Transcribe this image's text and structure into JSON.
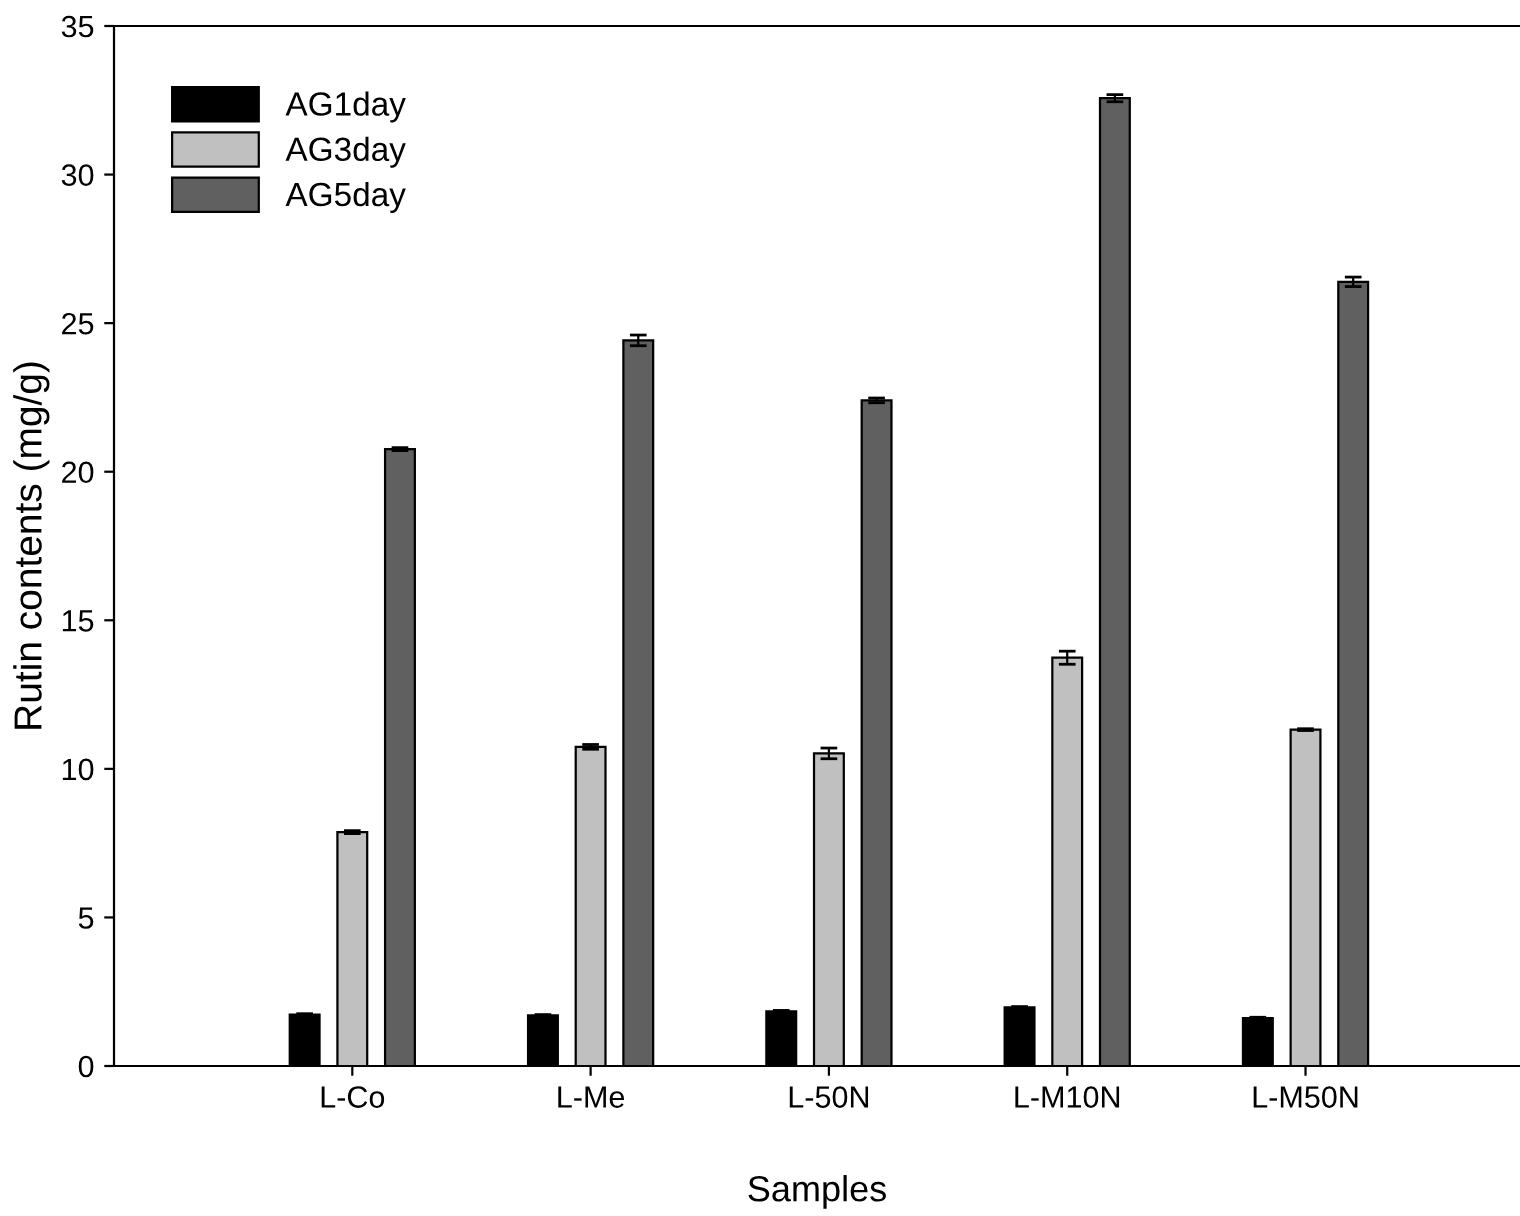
{
  "chart_data": {
    "type": "bar",
    "xlabel": "Samples",
    "ylabel": "Rutin contents (mg/g)",
    "categories": [
      "L-Co",
      "L-Me",
      "L-50N",
      "L-M10N",
      "L-M50N"
    ],
    "series": [
      {
        "name": "AG1day",
        "color": "#000000",
        "values": [
          1.73,
          1.7,
          1.84,
          1.97,
          1.61
        ],
        "errors": [
          0.03,
          0.03,
          0.03,
          0.03,
          0.03
        ]
      },
      {
        "name": "AG3day",
        "color": "#c0c0c0",
        "values": [
          7.87,
          10.74,
          10.52,
          13.74,
          11.32
        ],
        "errors": [
          0.05,
          0.08,
          0.18,
          0.22,
          0.03
        ]
      },
      {
        "name": "AG5day",
        "color": "#606060",
        "values": [
          20.76,
          24.42,
          22.4,
          32.57,
          26.39
        ],
        "errors": [
          0.05,
          0.18,
          0.08,
          0.12,
          0.16
        ]
      }
    ],
    "ylim": [
      0,
      35
    ],
    "yticks": [
      0,
      5,
      10,
      15,
      20,
      25,
      30,
      35
    ],
    "grid": false,
    "legend": "top left"
  }
}
